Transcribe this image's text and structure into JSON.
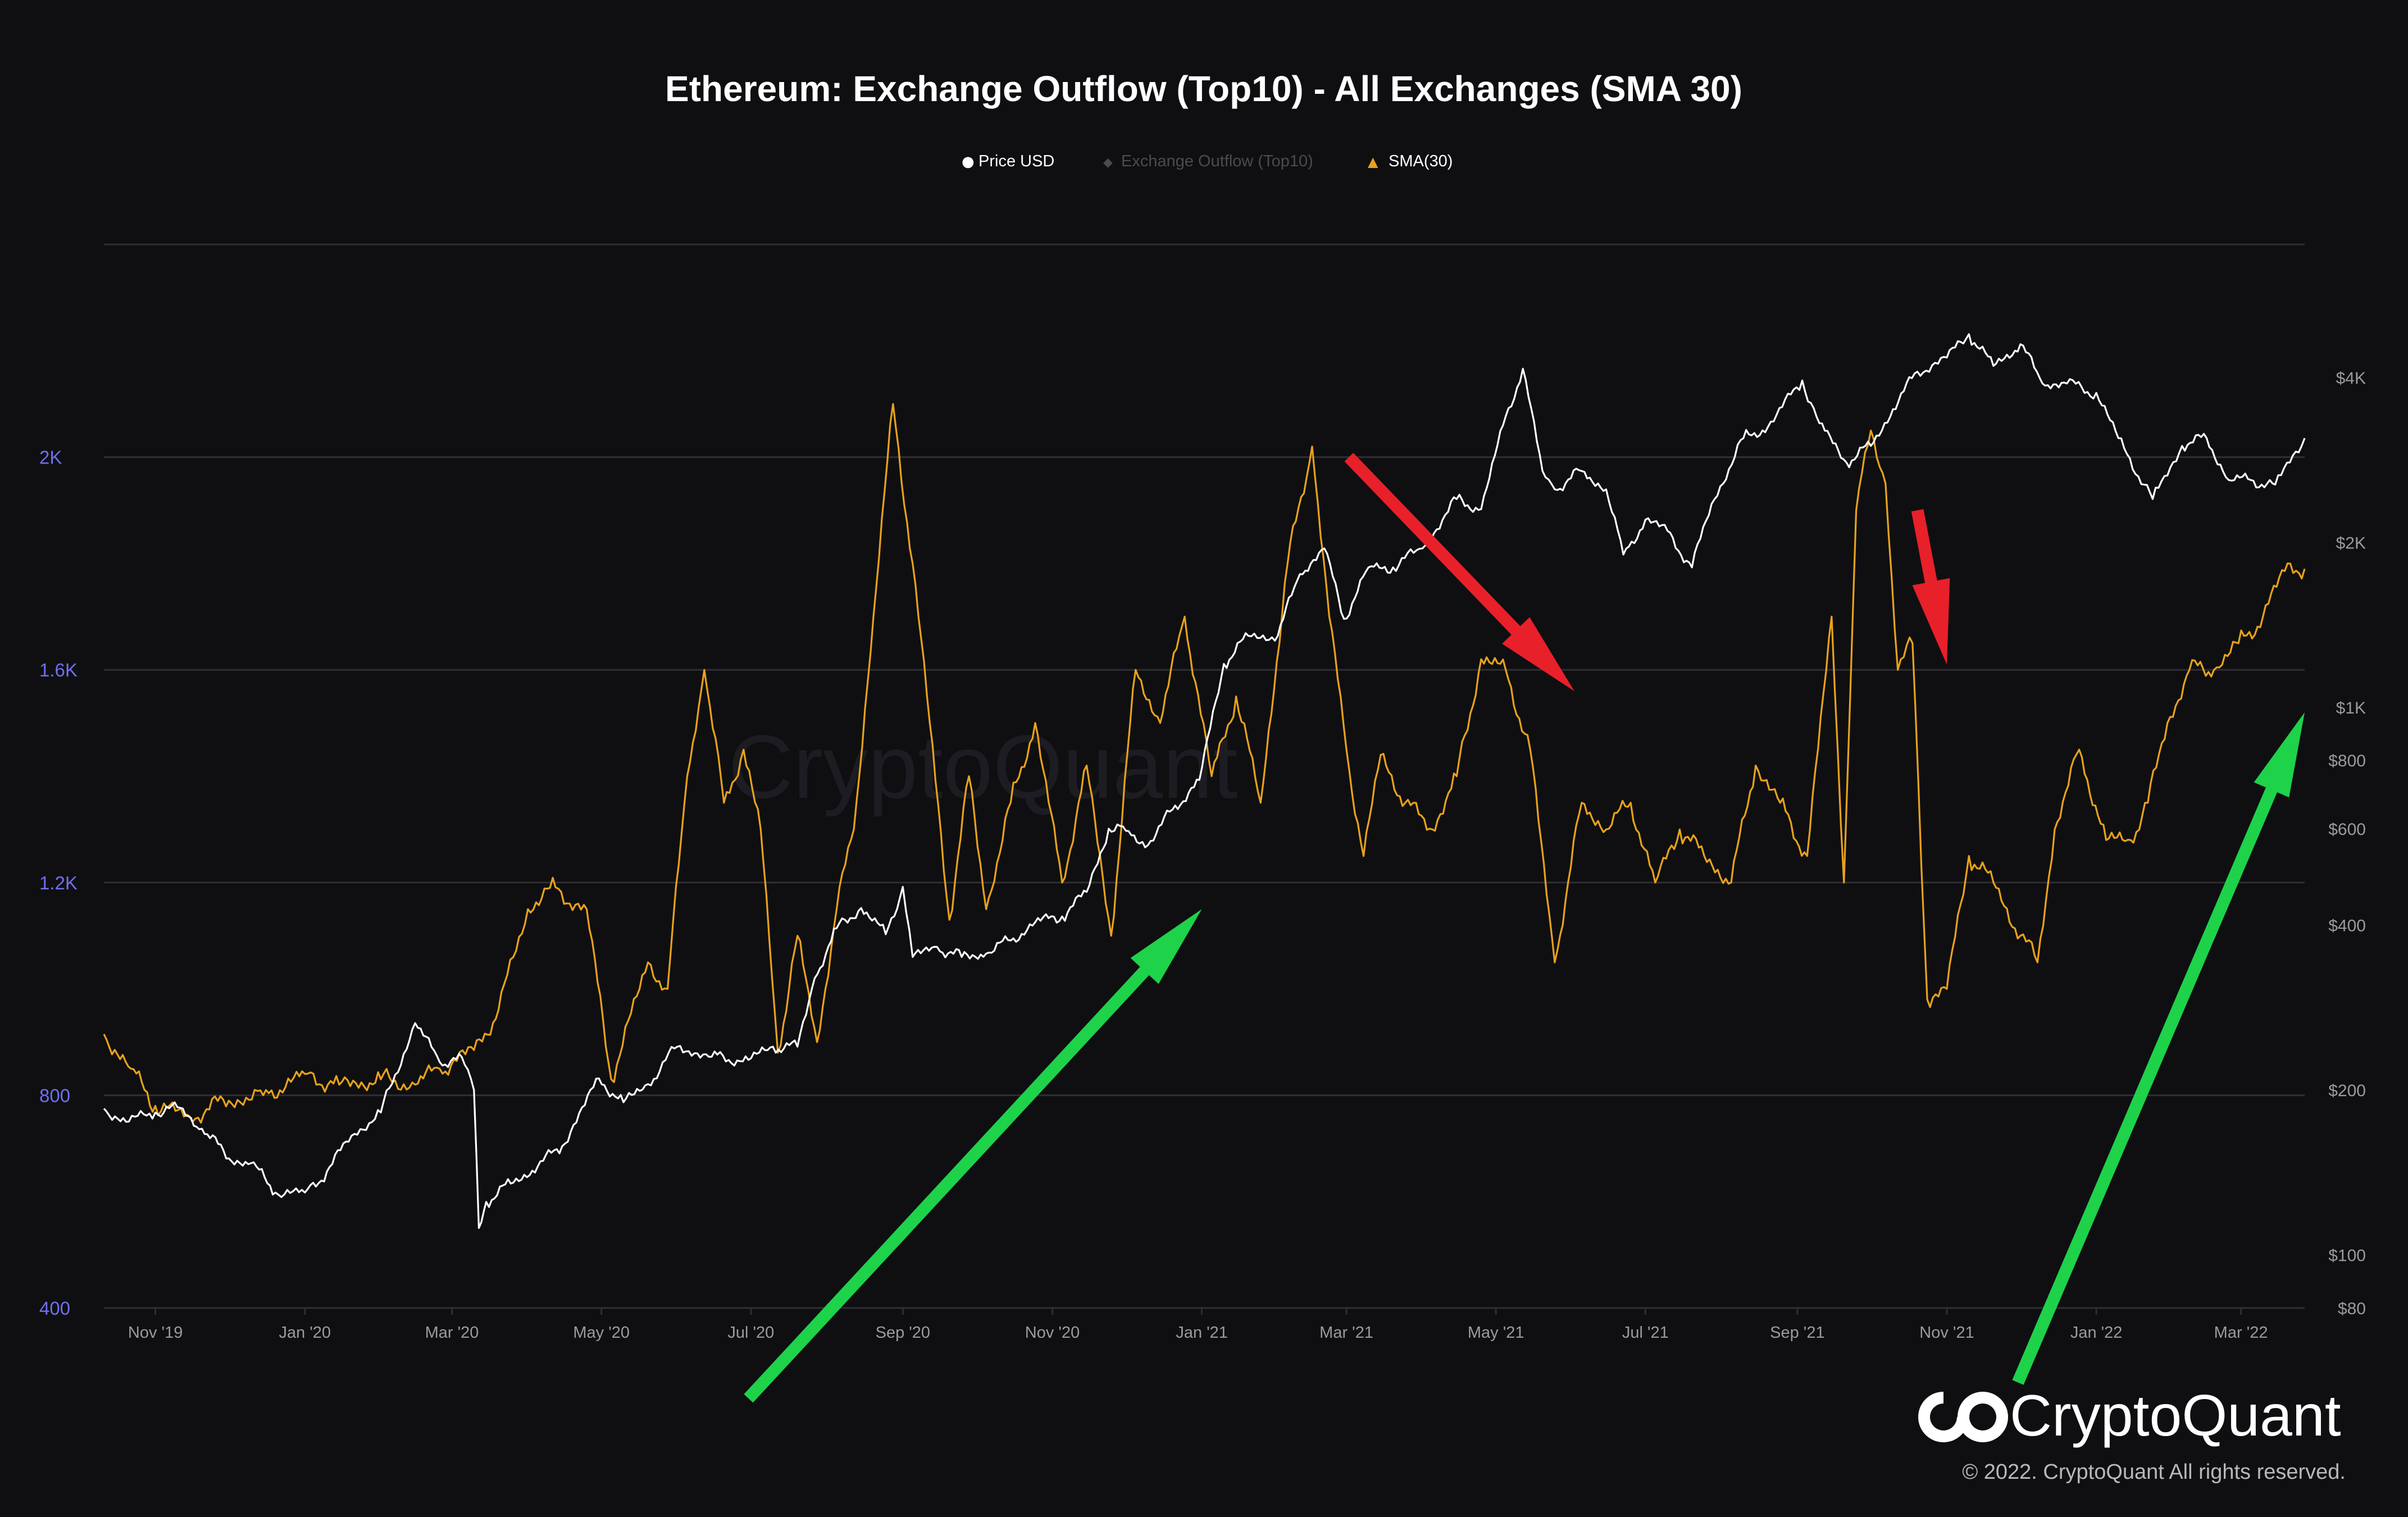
{
  "colors": {
    "background": "#0f0f12",
    "grid": "#2e2e33",
    "left_axis_text": "#6f6ff0",
    "right_axis_text": "#9a9aa0",
    "x_axis_text": "#9a9aa0",
    "price": "#ffffff",
    "outflow_legend": "#4a4a50",
    "sma": "#e8a21b",
    "arrow_green": "#1ed24a",
    "arrow_red": "#e8202a",
    "watermark": "#1c1c22",
    "title": "#ffffff"
  },
  "logo": {
    "text": "CryptoQuant",
    "copyright": "© 2022. CryptoQuant All rights reserved."
  },
  "watermark_text": "CryptoQuant",
  "chart_data": {
    "type": "line",
    "title": "Ethereum: Exchange Outflow (Top10) - All Exchanges (SMA 30)",
    "legend": {
      "placement": "top-center",
      "entries": [
        {
          "label": "Price USD",
          "marker": "●"
        },
        {
          "label": "Exchange Outflow (Top10)",
          "marker": "◆"
        },
        {
          "label": "SMA(30)",
          "marker": "▲"
        }
      ]
    },
    "grid": true,
    "x_range": [
      "2019-10-11",
      "2022-03-27"
    ],
    "x_ticks": [
      {
        "date": "2019-11-01",
        "label": "Nov '19"
      },
      {
        "date": "2020-01-01",
        "label": "Jan '20"
      },
      {
        "date": "2020-03-01",
        "label": "Mar '20"
      },
      {
        "date": "2020-05-01",
        "label": "May '20"
      },
      {
        "date": "2020-07-01",
        "label": "Jul '20"
      },
      {
        "date": "2020-09-01",
        "label": "Sep '20"
      },
      {
        "date": "2020-11-01",
        "label": "Nov '20"
      },
      {
        "date": "2021-01-01",
        "label": "Jan '21"
      },
      {
        "date": "2021-03-01",
        "label": "Mar '21"
      },
      {
        "date": "2021-05-01",
        "label": "May '21"
      },
      {
        "date": "2021-07-01",
        "label": "Jul '21"
      },
      {
        "date": "2021-09-01",
        "label": "Sep '21"
      },
      {
        "date": "2021-11-01",
        "label": "Nov '21"
      },
      {
        "date": "2022-01-01",
        "label": "Jan '22"
      },
      {
        "date": "2022-03-01",
        "label": "Mar '22"
      }
    ],
    "y_left": {
      "range": [
        400,
        2400
      ],
      "ticks": [
        {
          "value": 400,
          "label": "400"
        },
        {
          "value": 800,
          "label": "800"
        },
        {
          "value": 1200,
          "label": "1.2K"
        },
        {
          "value": 1600,
          "label": "1.6K"
        },
        {
          "value": 2000,
          "label": "2K"
        }
      ]
    },
    "y_right": {
      "scale": "log",
      "range": [
        80,
        7000
      ],
      "ticks": [
        {
          "value": 80,
          "label": "$80"
        },
        {
          "value": 100,
          "label": "$100"
        },
        {
          "value": 200,
          "label": "$200"
        },
        {
          "value": 400,
          "label": "$400"
        },
        {
          "value": 600,
          "label": "$600"
        },
        {
          "value": 800,
          "label": "$800"
        },
        {
          "value": 1000,
          "label": "$1K"
        },
        {
          "value": 2000,
          "label": "$2K"
        },
        {
          "value": 4000,
          "label": "$4K"
        }
      ]
    },
    "series": [
      {
        "name": "Price USD",
        "axis": "right",
        "points": [
          [
            "2019-10-11",
            185
          ],
          [
            "2019-10-20",
            175
          ],
          [
            "2019-11-01",
            182
          ],
          [
            "2019-11-10",
            186
          ],
          [
            "2019-11-20",
            170
          ],
          [
            "2019-12-01",
            150
          ],
          [
            "2019-12-10",
            147
          ],
          [
            "2019-12-20",
            130
          ],
          [
            "2020-01-01",
            130
          ],
          [
            "2020-01-10",
            142
          ],
          [
            "2020-01-20",
            165
          ],
          [
            "2020-02-01",
            182
          ],
          [
            "2020-02-15",
            265
          ],
          [
            "2020-02-25",
            225
          ],
          [
            "2020-03-05",
            230
          ],
          [
            "2020-03-10",
            200
          ],
          [
            "2020-03-12",
            112
          ],
          [
            "2020-03-15",
            125
          ],
          [
            "2020-03-25",
            135
          ],
          [
            "2020-04-05",
            145
          ],
          [
            "2020-04-15",
            158
          ],
          [
            "2020-04-30",
            210
          ],
          [
            "2020-05-10",
            190
          ],
          [
            "2020-05-20",
            205
          ],
          [
            "2020-06-01",
            240
          ],
          [
            "2020-06-15",
            230
          ],
          [
            "2020-06-30",
            227
          ],
          [
            "2020-07-10",
            240
          ],
          [
            "2020-07-20",
            240
          ],
          [
            "2020-07-27",
            320
          ],
          [
            "2020-08-05",
            395
          ],
          [
            "2020-08-15",
            430
          ],
          [
            "2020-08-25",
            385
          ],
          [
            "2020-09-01",
            470
          ],
          [
            "2020-09-05",
            350
          ],
          [
            "2020-09-15",
            365
          ],
          [
            "2020-09-25",
            350
          ],
          [
            "2020-10-05",
            355
          ],
          [
            "2020-10-15",
            375
          ],
          [
            "2020-10-25",
            405
          ],
          [
            "2020-11-05",
            415
          ],
          [
            "2020-11-15",
            460
          ],
          [
            "2020-11-24",
            600
          ],
          [
            "2020-12-01",
            595
          ],
          [
            "2020-12-10",
            560
          ],
          [
            "2020-12-20",
            650
          ],
          [
            "2020-12-31",
            737
          ],
          [
            "2021-01-10",
            1200
          ],
          [
            "2021-01-20",
            1350
          ],
          [
            "2021-02-01",
            1350
          ],
          [
            "2021-02-10",
            1750
          ],
          [
            "2021-02-20",
            1950
          ],
          [
            "2021-02-28",
            1450
          ],
          [
            "2021-03-10",
            1800
          ],
          [
            "2021-03-20",
            1800
          ],
          [
            "2021-04-01",
            1950
          ],
          [
            "2021-04-15",
            2400
          ],
          [
            "2021-04-25",
            2300
          ],
          [
            "2021-05-05",
            3400
          ],
          [
            "2021-05-12",
            4150
          ],
          [
            "2021-05-20",
            2700
          ],
          [
            "2021-05-25",
            2500
          ],
          [
            "2021-06-05",
            2700
          ],
          [
            "2021-06-15",
            2500
          ],
          [
            "2021-06-22",
            1900
          ],
          [
            "2021-07-01",
            2200
          ],
          [
            "2021-07-10",
            2100
          ],
          [
            "2021-07-20",
            1800
          ],
          [
            "2021-07-28",
            2350
          ],
          [
            "2021-08-10",
            3100
          ],
          [
            "2021-08-20",
            3250
          ],
          [
            "2021-09-03",
            3950
          ],
          [
            "2021-09-10",
            3300
          ],
          [
            "2021-09-21",
            2800
          ],
          [
            "2021-10-01",
            3000
          ],
          [
            "2021-10-10",
            3500
          ],
          [
            "2021-10-20",
            4100
          ],
          [
            "2021-11-01",
            4350
          ],
          [
            "2021-11-10",
            4800
          ],
          [
            "2021-11-20",
            4200
          ],
          [
            "2021-12-01",
            4600
          ],
          [
            "2021-12-10",
            3900
          ],
          [
            "2021-12-20",
            3900
          ],
          [
            "2022-01-01",
            3750
          ],
          [
            "2022-01-10",
            3100
          ],
          [
            "2022-01-24",
            2400
          ],
          [
            "2022-02-05",
            3000
          ],
          [
            "2022-02-15",
            3100
          ],
          [
            "2022-02-24",
            2600
          ],
          [
            "2022-03-05",
            2600
          ],
          [
            "2022-03-15",
            2550
          ],
          [
            "2022-03-27",
            3100
          ]
        ]
      },
      {
        "name": "SMA(30)",
        "axis": "left",
        "points": [
          [
            "2019-10-11",
            915
          ],
          [
            "2019-10-22",
            850
          ],
          [
            "2019-11-01",
            780
          ],
          [
            "2019-11-15",
            760
          ],
          [
            "2019-12-01",
            790
          ],
          [
            "2019-12-15",
            800
          ],
          [
            "2020-01-01",
            840
          ],
          [
            "2020-01-15",
            820
          ],
          [
            "2020-02-01",
            830
          ],
          [
            "2020-02-15",
            820
          ],
          [
            "2020-02-25",
            850
          ],
          [
            "2020-03-10",
            885
          ],
          [
            "2020-03-20",
            960
          ],
          [
            "2020-04-01",
            1150
          ],
          [
            "2020-04-10",
            1190
          ],
          [
            "2020-04-25",
            1150
          ],
          [
            "2020-05-05",
            830
          ],
          [
            "2020-05-20",
            1050
          ],
          [
            "2020-05-28",
            1000
          ],
          [
            "2020-06-05",
            1400
          ],
          [
            "2020-06-12",
            1600
          ],
          [
            "2020-06-20",
            1350
          ],
          [
            "2020-06-28",
            1450
          ],
          [
            "2020-07-05",
            1300
          ],
          [
            "2020-07-12",
            880
          ],
          [
            "2020-07-20",
            1100
          ],
          [
            "2020-07-28",
            900
          ],
          [
            "2020-08-05",
            1150
          ],
          [
            "2020-08-12",
            1300
          ],
          [
            "2020-08-20",
            1700
          ],
          [
            "2020-08-28",
            2100
          ],
          [
            "2020-09-05",
            1800
          ],
          [
            "2020-09-12",
            1500
          ],
          [
            "2020-09-20",
            1130
          ],
          [
            "2020-09-28",
            1400
          ],
          [
            "2020-10-05",
            1150
          ],
          [
            "2020-10-15",
            1350
          ],
          [
            "2020-10-25",
            1500
          ],
          [
            "2020-11-05",
            1200
          ],
          [
            "2020-11-15",
            1420
          ],
          [
            "2020-11-25",
            1100
          ],
          [
            "2020-12-05",
            1600
          ],
          [
            "2020-12-15",
            1500
          ],
          [
            "2020-12-25",
            1700
          ],
          [
            "2021-01-05",
            1400
          ],
          [
            "2021-01-15",
            1550
          ],
          [
            "2021-01-25",
            1350
          ],
          [
            "2021-02-05",
            1800
          ],
          [
            "2021-02-15",
            2020
          ],
          [
            "2021-02-22",
            1700
          ],
          [
            "2021-03-01",
            1450
          ],
          [
            "2021-03-08",
            1250
          ],
          [
            "2021-03-15",
            1440
          ],
          [
            "2021-03-25",
            1350
          ],
          [
            "2021-04-05",
            1300
          ],
          [
            "2021-04-15",
            1400
          ],
          [
            "2021-04-25",
            1620
          ],
          [
            "2021-05-05",
            1600
          ],
          [
            "2021-05-15",
            1450
          ],
          [
            "2021-05-25",
            1050
          ],
          [
            "2021-06-05",
            1350
          ],
          [
            "2021-06-15",
            1300
          ],
          [
            "2021-06-25",
            1350
          ],
          [
            "2021-07-05",
            1200
          ],
          [
            "2021-07-15",
            1300
          ],
          [
            "2021-07-25",
            1250
          ],
          [
            "2021-08-05",
            1200
          ],
          [
            "2021-08-15",
            1420
          ],
          [
            "2021-08-25",
            1350
          ],
          [
            "2021-09-05",
            1250
          ],
          [
            "2021-09-15",
            1700
          ],
          [
            "2021-09-20",
            1200
          ],
          [
            "2021-09-25",
            1900
          ],
          [
            "2021-10-01",
            2050
          ],
          [
            "2021-10-07",
            1950
          ],
          [
            "2021-10-12",
            1600
          ],
          [
            "2021-10-18",
            1650
          ],
          [
            "2021-10-24",
            980
          ],
          [
            "2021-11-01",
            1000
          ],
          [
            "2021-11-10",
            1250
          ],
          [
            "2021-11-20",
            1200
          ],
          [
            "2021-12-01",
            1100
          ],
          [
            "2021-12-08",
            1050
          ],
          [
            "2021-12-15",
            1300
          ],
          [
            "2021-12-25",
            1450
          ],
          [
            "2022-01-05",
            1280
          ],
          [
            "2022-01-15",
            1280
          ],
          [
            "2022-01-22",
            1350
          ],
          [
            "2022-01-30",
            1500
          ],
          [
            "2022-02-08",
            1600
          ],
          [
            "2022-02-18",
            1600
          ],
          [
            "2022-02-28",
            1650
          ],
          [
            "2022-03-10",
            1700
          ],
          [
            "2022-03-20",
            1800
          ],
          [
            "2022-03-27",
            1790
          ]
        ]
      }
    ],
    "annotations": [
      {
        "type": "arrow",
        "color": "green",
        "from": [
          "2020-06-30",
          230
        ],
        "to": [
          "2021-01-01",
          1150
        ]
      },
      {
        "type": "arrow",
        "color": "red",
        "from": [
          "2021-03-02",
          2000
        ],
        "to": [
          "2021-06-02",
          1560
        ]
      },
      {
        "type": "arrow",
        "color": "red",
        "from": [
          "2021-10-20",
          1900
        ],
        "to": [
          "2021-11-01",
          1610
        ]
      },
      {
        "type": "arrow",
        "color": "green",
        "from": [
          "2021-11-30",
          260
        ],
        "to": [
          "2022-03-27",
          1520
        ]
      }
    ]
  }
}
